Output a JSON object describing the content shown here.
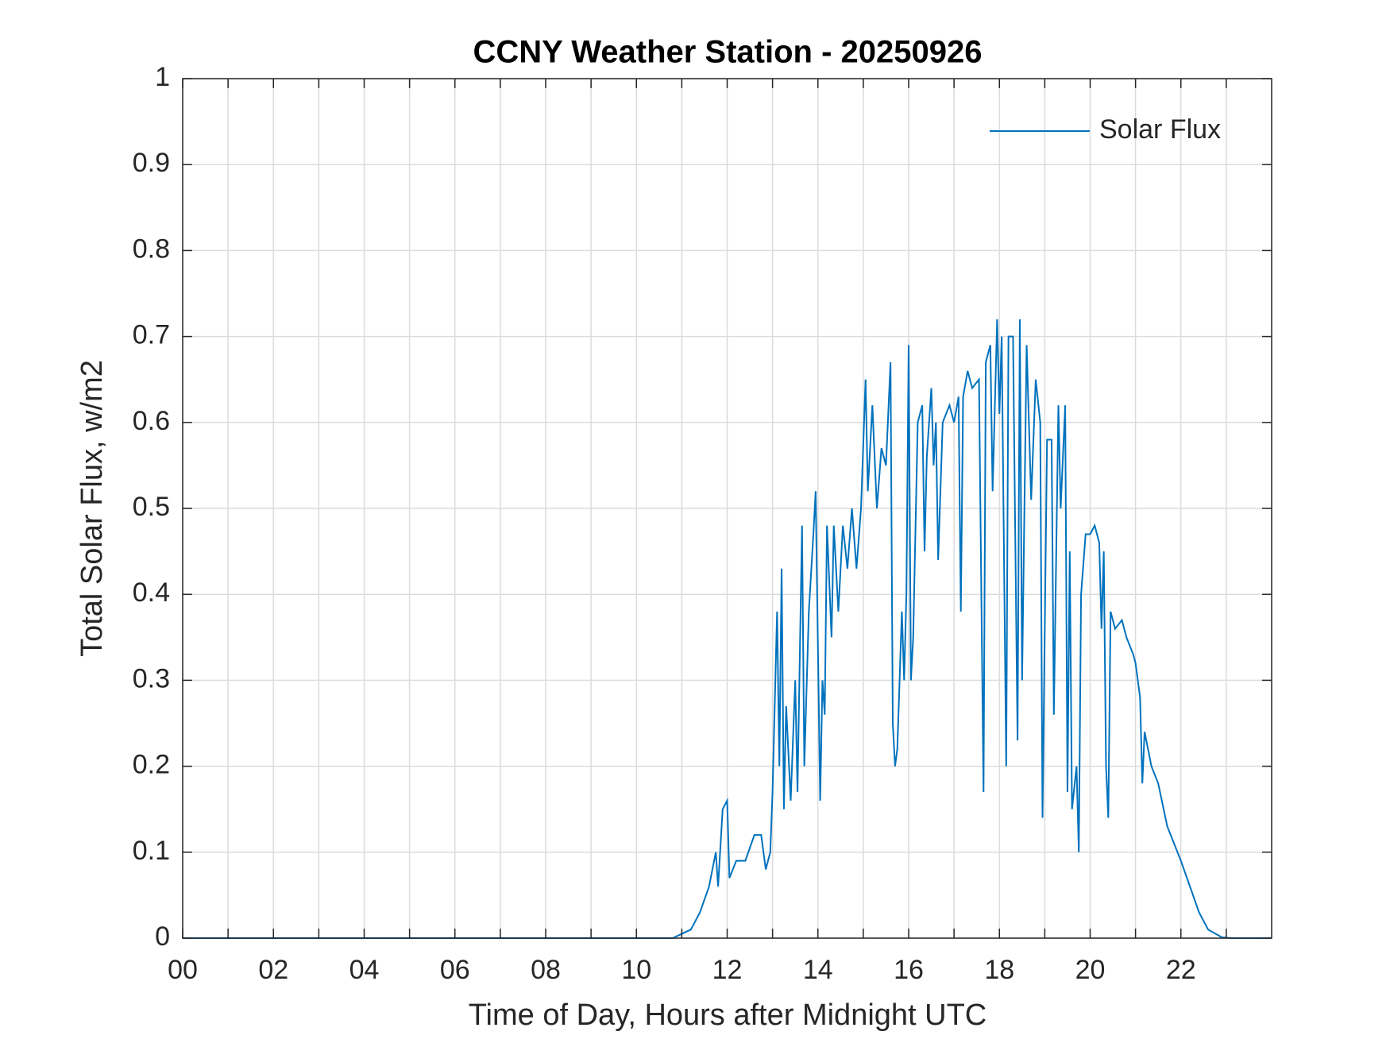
{
  "chart_data": {
    "type": "line",
    "title": "CCNY Weather Station - 20250926",
    "xlabel": "Time of Day, Hours after Midnight UTC",
    "ylabel": "Total Solar Flux, w/m2",
    "xlim": [
      0,
      24
    ],
    "xticks": [
      {
        "value": 0,
        "label": "00"
      },
      {
        "value": 2,
        "label": "02"
      },
      {
        "value": 4,
        "label": "04"
      },
      {
        "value": 6,
        "label": "06"
      },
      {
        "value": 8,
        "label": "08"
      },
      {
        "value": 10,
        "label": "10"
      },
      {
        "value": 12,
        "label": "12"
      },
      {
        "value": 14,
        "label": "14"
      },
      {
        "value": 16,
        "label": "16"
      },
      {
        "value": 18,
        "label": "18"
      },
      {
        "value": 20,
        "label": "20"
      },
      {
        "value": 22,
        "label": "22"
      }
    ],
    "xminorticks": [
      1,
      3,
      5,
      7,
      9,
      11,
      13,
      15,
      17,
      19,
      21,
      23
    ],
    "ylim": [
      0,
      1
    ],
    "yticks": [
      0,
      0.1,
      0.2,
      0.3,
      0.4,
      0.5,
      0.6,
      0.7,
      0.8,
      0.9,
      1
    ],
    "grid": true,
    "legend": "northeast",
    "x": [
      0,
      10.8,
      11.0,
      11.2,
      11.4,
      11.6,
      11.75,
      11.8,
      11.9,
      12.0,
      12.05,
      12.2,
      12.4,
      12.6,
      12.75,
      12.85,
      12.95,
      13.0,
      13.1,
      13.15,
      13.2,
      13.25,
      13.3,
      13.4,
      13.5,
      13.55,
      13.65,
      13.7,
      13.8,
      13.9,
      13.95,
      14.05,
      14.1,
      14.15,
      14.2,
      14.3,
      14.35,
      14.45,
      14.55,
      14.65,
      14.75,
      14.85,
      14.95,
      15.05,
      15.1,
      15.2,
      15.3,
      15.4,
      15.5,
      15.6,
      15.65,
      15.7,
      15.75,
      15.85,
      15.9,
      15.95,
      16.0,
      16.05,
      16.1,
      16.2,
      16.3,
      16.35,
      16.4,
      16.5,
      16.55,
      16.6,
      16.65,
      16.75,
      16.9,
      17.0,
      17.1,
      17.15,
      17.2,
      17.3,
      17.4,
      17.55,
      17.65,
      17.7,
      17.8,
      17.85,
      17.95,
      18.0,
      18.05,
      18.15,
      18.2,
      18.3,
      18.4,
      18.45,
      18.5,
      18.6,
      18.7,
      18.8,
      18.9,
      18.95,
      19.05,
      19.15,
      19.2,
      19.3,
      19.35,
      19.45,
      19.5,
      19.55,
      19.6,
      19.7,
      19.75,
      19.8,
      19.9,
      20.0,
      20.1,
      20.2,
      20.25,
      20.3,
      20.35,
      20.4,
      20.45,
      20.55,
      20.7,
      20.8,
      20.95,
      21.0,
      21.1,
      21.15,
      21.2,
      21.35,
      21.5,
      21.7,
      22.0,
      22.2,
      22.4,
      22.6,
      22.9,
      23.1,
      24
    ],
    "series": [
      {
        "name": "Solar Flux",
        "color": "#0072bd",
        "values": [
          0,
          0,
          0.005,
          0.01,
          0.03,
          0.06,
          0.1,
          0.06,
          0.15,
          0.16,
          0.07,
          0.09,
          0.09,
          0.12,
          0.12,
          0.08,
          0.1,
          0.17,
          0.38,
          0.2,
          0.43,
          0.15,
          0.27,
          0.16,
          0.3,
          0.17,
          0.48,
          0.2,
          0.38,
          0.47,
          0.52,
          0.16,
          0.3,
          0.26,
          0.48,
          0.35,
          0.48,
          0.38,
          0.48,
          0.43,
          0.5,
          0.43,
          0.5,
          0.65,
          0.52,
          0.62,
          0.5,
          0.57,
          0.55,
          0.67,
          0.25,
          0.2,
          0.22,
          0.38,
          0.3,
          0.4,
          0.69,
          0.3,
          0.35,
          0.6,
          0.62,
          0.45,
          0.56,
          0.64,
          0.55,
          0.6,
          0.44,
          0.6,
          0.62,
          0.6,
          0.63,
          0.38,
          0.63,
          0.66,
          0.64,
          0.65,
          0.17,
          0.67,
          0.69,
          0.52,
          0.72,
          0.61,
          0.7,
          0.2,
          0.7,
          0.7,
          0.23,
          0.72,
          0.3,
          0.69,
          0.51,
          0.65,
          0.6,
          0.14,
          0.58,
          0.58,
          0.26,
          0.62,
          0.5,
          0.62,
          0.17,
          0.45,
          0.15,
          0.2,
          0.1,
          0.4,
          0.47,
          0.47,
          0.48,
          0.46,
          0.36,
          0.45,
          0.2,
          0.14,
          0.38,
          0.36,
          0.37,
          0.35,
          0.33,
          0.32,
          0.28,
          0.18,
          0.24,
          0.2,
          0.18,
          0.13,
          0.09,
          0.06,
          0.03,
          0.01,
          0.001,
          0,
          0
        ]
      }
    ]
  }
}
